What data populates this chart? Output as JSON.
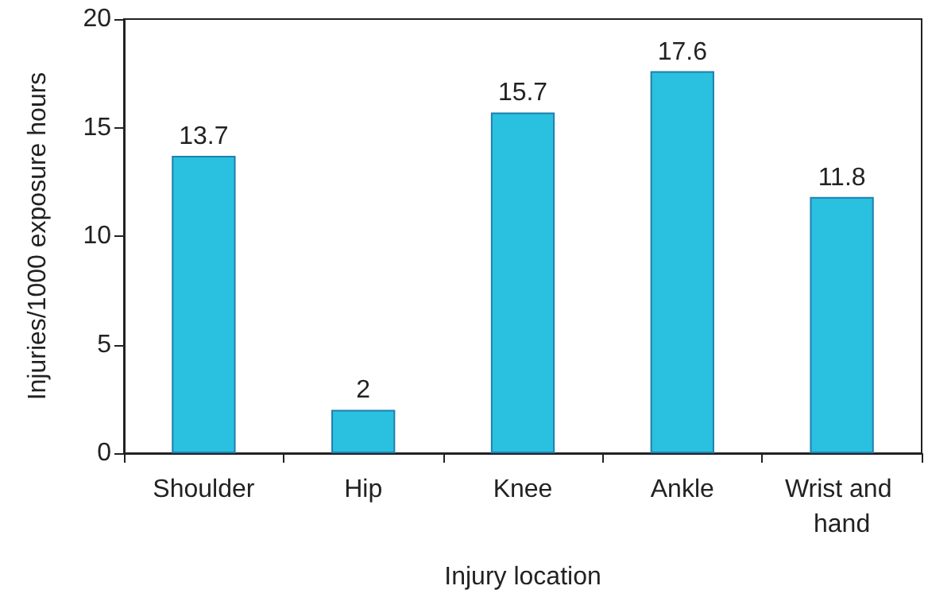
{
  "chart_data": {
    "type": "bar",
    "xlabel": "Injury location",
    "ylabel": "Injuries/1000 exposure hours",
    "categories": [
      "Shoulder",
      "Hip",
      "Knee",
      "Ankle",
      "Wrist and hand"
    ],
    "values": [
      13.7,
      2,
      15.7,
      17.6,
      11.8
    ],
    "color": "#29c1df",
    "ylim": [
      0,
      20
    ],
    "yticks": [
      0,
      5,
      10,
      15,
      20
    ],
    "grid": false,
    "data_labels": true
  }
}
